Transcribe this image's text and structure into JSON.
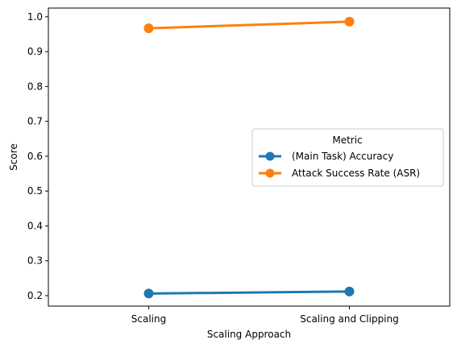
{
  "chart_data": {
    "type": "line",
    "categories": [
      "Scaling",
      "Scaling and Clipping"
    ],
    "series": [
      {
        "name": "(Main Task) Accuracy",
        "values": [
          0.206,
          0.212
        ],
        "color": "#1f77b4"
      },
      {
        "name": "Attack Success Rate (ASR)",
        "values": [
          0.967,
          0.986
        ],
        "color": "#ff7f0e"
      }
    ],
    "xlabel": "Scaling Approach",
    "ylabel": "Score",
    "ylim": [
      0.17,
      1.025
    ],
    "yticks": [
      0.2,
      0.3,
      0.4,
      0.5,
      0.6,
      0.7,
      0.8,
      0.9,
      1.0
    ],
    "ytick_labels": [
      "0.2",
      "0.3",
      "0.4",
      "0.5",
      "0.6",
      "0.7",
      "0.8",
      "0.9",
      "1.0"
    ],
    "legend": {
      "title": "Metric",
      "placement": "center-right"
    },
    "grid": false
  }
}
